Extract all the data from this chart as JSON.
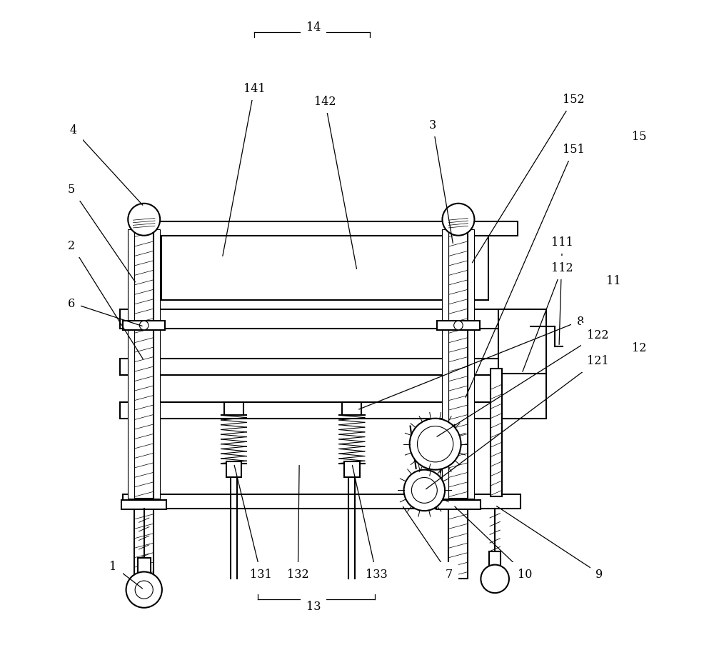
{
  "bg_color": "#ffffff",
  "line_color": "#000000",
  "fig_width": 10.0,
  "fig_height": 9.04
}
